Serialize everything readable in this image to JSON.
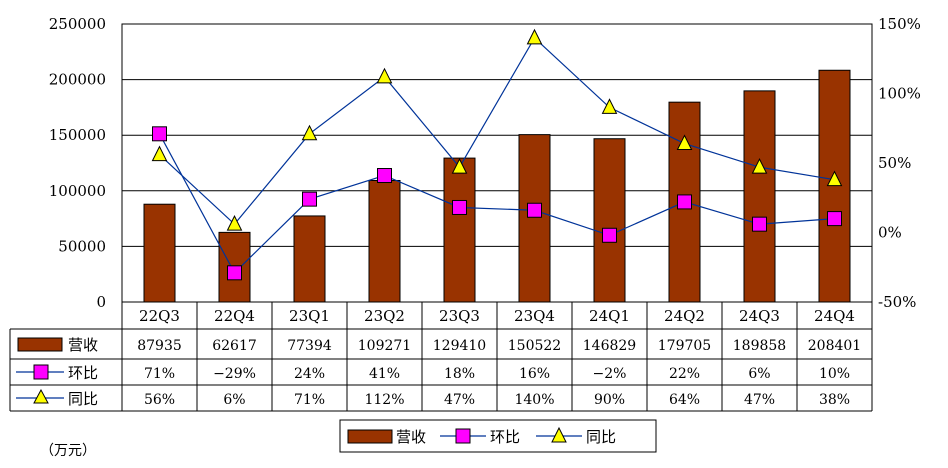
{
  "chart_data": {
    "type": "bar",
    "categories": [
      "22Q3",
      "22Q4",
      "23Q1",
      "23Q2",
      "23Q3",
      "23Q4",
      "24Q1",
      "24Q2",
      "24Q3",
      "24Q4"
    ],
    "series": [
      {
        "name": "营收",
        "kind": "bar",
        "axis": "left",
        "color": "#993300",
        "values": [
          87935,
          62617,
          77394,
          109271,
          129410,
          150522,
          146829,
          179705,
          189858,
          208401
        ],
        "labels": [
          "87935",
          "62617",
          "77394",
          "109271",
          "129410",
          "150522",
          "146829",
          "179705",
          "189858",
          "208401"
        ]
      },
      {
        "name": "环比",
        "kind": "line",
        "axis": "right",
        "marker": "square",
        "color": "#ff00ff",
        "values": [
          71,
          -29,
          24,
          41,
          18,
          16,
          -2,
          22,
          6,
          10
        ],
        "labels": [
          "71%",
          "−29%",
          "24%",
          "41%",
          "18%",
          "16%",
          "−2%",
          "22%",
          "6%",
          "10%"
        ]
      },
      {
        "name": "同比",
        "kind": "line",
        "axis": "right",
        "marker": "triangle",
        "color": "#ffff00",
        "values": [
          56,
          6,
          71,
          112,
          47,
          140,
          90,
          64,
          47,
          38
        ],
        "labels": [
          "56%",
          "6%",
          "71%",
          "112%",
          "47%",
          "140%",
          "90%",
          "64%",
          "47%",
          "38%"
        ]
      }
    ],
    "y_left": {
      "ylim": [
        0,
        250000
      ],
      "ticks": [
        "0",
        "50000",
        "100000",
        "150000",
        "200000",
        "250000"
      ]
    },
    "y_right": {
      "ylim": [
        -50,
        150
      ],
      "ticks": [
        "-50%",
        "0%",
        "50%",
        "100%",
        "150%"
      ]
    },
    "line_color": "#003399",
    "grid": true,
    "legend": {
      "position": "bottom",
      "entries": [
        "营收",
        "环比",
        "同比"
      ]
    },
    "unit_label": "（万元）"
  }
}
